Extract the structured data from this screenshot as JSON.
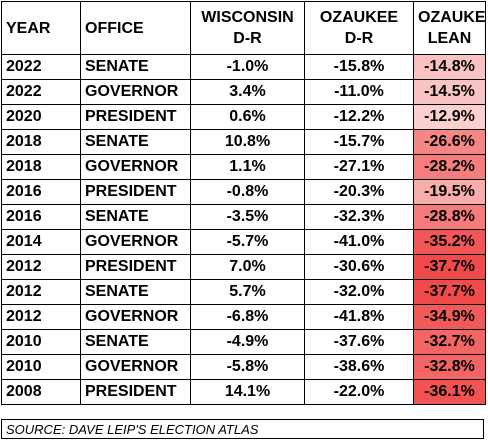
{
  "headers": {
    "year": "YEAR",
    "office": "OFFICE",
    "wisconsin": [
      "WISCONSIN",
      "D-R"
    ],
    "ozaukee": [
      "OZAUKEE",
      "D-R"
    ],
    "lean": [
      "OZAUKEE",
      "LEAN"
    ]
  },
  "rows": [
    {
      "year": "2022",
      "office": "SENATE",
      "wisconsin": "-1.0%",
      "ozaukee": "-15.8%",
      "lean": "-14.8%",
      "lean_color": "#fbc2c2"
    },
    {
      "year": "2022",
      "office": "GOVERNOR",
      "wisconsin": "3.4%",
      "ozaukee": "-11.0%",
      "lean": "-14.5%",
      "lean_color": "#fbc4c4"
    },
    {
      "year": "2020",
      "office": "PRESIDENT",
      "wisconsin": "0.6%",
      "ozaukee": "-12.2%",
      "lean": "-12.9%",
      "lean_color": "#fdd0d0"
    },
    {
      "year": "2018",
      "office": "SENATE",
      "wisconsin": "10.8%",
      "ozaukee": "-15.7%",
      "lean": "-26.6%",
      "lean_color": "#f68686"
    },
    {
      "year": "2018",
      "office": "GOVERNOR",
      "wisconsin": "1.1%",
      "ozaukee": "-27.1%",
      "lean": "-28.2%",
      "lean_color": "#f57d7d"
    },
    {
      "year": "2016",
      "office": "PRESIDENT",
      "wisconsin": "-0.8%",
      "ozaukee": "-20.3%",
      "lean": "-19.5%",
      "lean_color": "#f9acac"
    },
    {
      "year": "2016",
      "office": "SENATE",
      "wisconsin": "-3.5%",
      "ozaukee": "-32.3%",
      "lean": "-28.8%",
      "lean_color": "#f57a7a"
    },
    {
      "year": "2014",
      "office": "GOVERNOR",
      "wisconsin": "-5.7%",
      "ozaukee": "-41.0%",
      "lean": "-35.2%",
      "lean_color": "#f25757"
    },
    {
      "year": "2012",
      "office": "PRESIDENT",
      "wisconsin": "7.0%",
      "ozaukee": "-30.6%",
      "lean": "-37.7%",
      "lean_color": "#f14a4a"
    },
    {
      "year": "2012",
      "office": "SENATE",
      "wisconsin": "5.7%",
      "ozaukee": "-32.0%",
      "lean": "-37.7%",
      "lean_color": "#f14a4a"
    },
    {
      "year": "2012",
      "office": "GOVERNOR",
      "wisconsin": "-6.8%",
      "ozaukee": "-41.8%",
      "lean": "-34.9%",
      "lean_color": "#f25959"
    },
    {
      "year": "2010",
      "office": "SENATE",
      "wisconsin": "-4.9%",
      "ozaukee": "-37.6%",
      "lean": "-32.7%",
      "lean_color": "#f36565"
    },
    {
      "year": "2010",
      "office": "GOVERNOR",
      "wisconsin": "-5.8%",
      "ozaukee": "-38.6%",
      "lean": "-32.8%",
      "lean_color": "#f36464"
    },
    {
      "year": "2008",
      "office": "PRESIDENT",
      "wisconsin": "14.1%",
      "ozaukee": "-22.0%",
      "lean": "-36.1%",
      "lean_color": "#f25252"
    }
  ],
  "source": "SOURCE: DAVE LEIP'S ELECTION ATLAS"
}
